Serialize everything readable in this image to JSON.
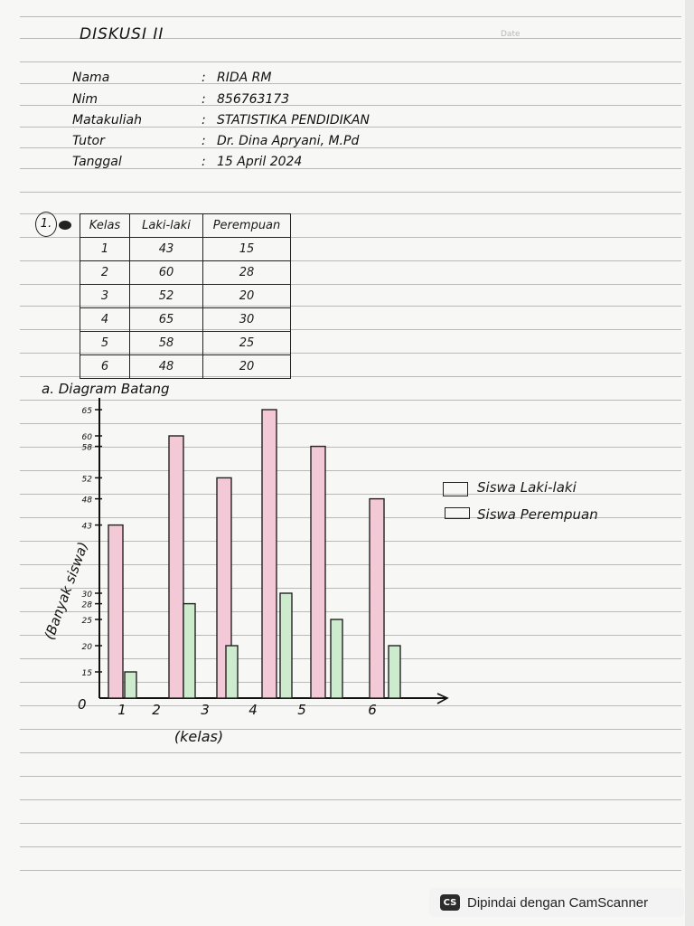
{
  "document": {
    "title": "DISKUSI II",
    "date_label": "Date"
  },
  "info": [
    {
      "label": "Nama",
      "value": "RIDA RM"
    },
    {
      "label": "Nim",
      "value": "856763173"
    },
    {
      "label": "Matakuliah",
      "value": "STATISTIKA PENDIDIKAN"
    },
    {
      "label": "Tutor",
      "value": "Dr. Dina Apryani, M.Pd"
    },
    {
      "label": "Tanggal",
      "value": "15 April 2024"
    }
  ],
  "question": {
    "number": "1.",
    "table": {
      "headers": [
        "Kelas",
        "Laki-laki",
        "Perempuan"
      ],
      "rows": [
        [
          "1",
          "43",
          "15"
        ],
        [
          "2",
          "60",
          "28"
        ],
        [
          "3",
          "52",
          "20"
        ],
        [
          "4",
          "65",
          "30"
        ],
        [
          "5",
          "58",
          "25"
        ],
        [
          "6",
          "48",
          "20"
        ]
      ]
    },
    "section_label": "a. Diagram Batang"
  },
  "chart_data": {
    "type": "bar",
    "categories": [
      "1",
      "2",
      "3",
      "4",
      "5",
      "6"
    ],
    "series": [
      {
        "name": "Siswa Laki-laki",
        "values": [
          43,
          60,
          52,
          65,
          58,
          48
        ],
        "color": "#f4c9d7"
      },
      {
        "name": "Siswa Perempuan",
        "values": [
          15,
          28,
          20,
          30,
          25,
          20
        ],
        "color": "#cdeccd"
      }
    ],
    "xlabel": "(kelas)",
    "ylabel": "(Banyak siswa)",
    "origin_label": "0",
    "yticks": [
      "15",
      "20",
      "25",
      "28",
      "30",
      "43",
      "48",
      "52",
      "58",
      "60",
      "65"
    ],
    "ylim": [
      10,
      65
    ]
  },
  "footer": {
    "scanner_logo": "CS",
    "scanner_text": "Dipindai dengan CamScanner"
  },
  "colors": {
    "paper": "#f7f7f5",
    "rule": "#b9b9b9",
    "ink": "#1a1a1a",
    "bar_male": "#f4c9d7",
    "bar_female": "#cdeccd"
  }
}
